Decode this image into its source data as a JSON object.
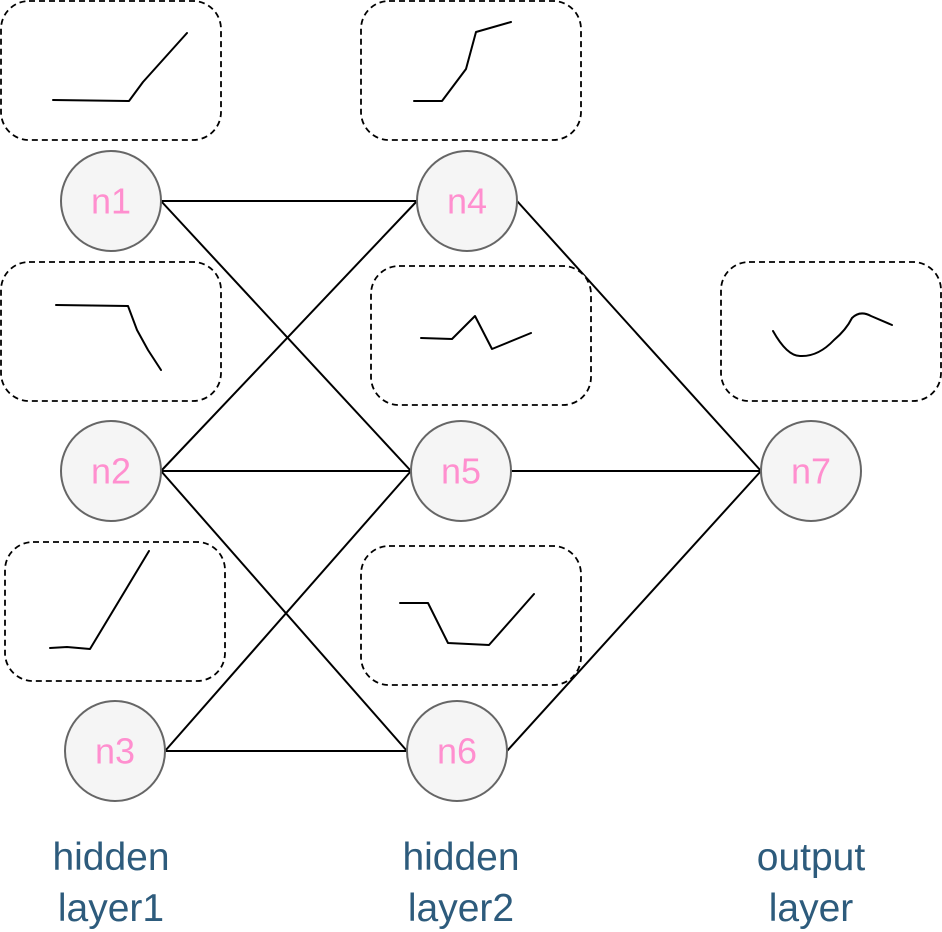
{
  "nodes": [
    {
      "id": "n1",
      "label": "n1"
    },
    {
      "id": "n2",
      "label": "n2"
    },
    {
      "id": "n3",
      "label": "n3"
    },
    {
      "id": "n4",
      "label": "n4"
    },
    {
      "id": "n5",
      "label": "n5"
    },
    {
      "id": "n6",
      "label": "n6"
    },
    {
      "id": "n7",
      "label": "n7"
    }
  ],
  "edges": [
    [
      "n1",
      "n4"
    ],
    [
      "n1",
      "n5"
    ],
    [
      "n2",
      "n4"
    ],
    [
      "n2",
      "n5"
    ],
    [
      "n2",
      "n6"
    ],
    [
      "n3",
      "n5"
    ],
    [
      "n3",
      "n6"
    ],
    [
      "n4",
      "n7"
    ],
    [
      "n5",
      "n7"
    ],
    [
      "n6",
      "n7"
    ]
  ],
  "activation_boxes": [
    "n1",
    "n2",
    "n3",
    "n4",
    "n5",
    "n6",
    "n7"
  ],
  "layers": {
    "hidden1": {
      "line1": "hidden",
      "line2": "layer1"
    },
    "hidden2": {
      "line1": "hidden",
      "line2": "layer2"
    },
    "output": {
      "line1": "output",
      "line2": "layer"
    }
  },
  "colors": {
    "node_fill": "#f5f5f5",
    "node_stroke": "#666666",
    "node_text": "#ff8fcf",
    "layer_text": "#2d5b7c"
  }
}
